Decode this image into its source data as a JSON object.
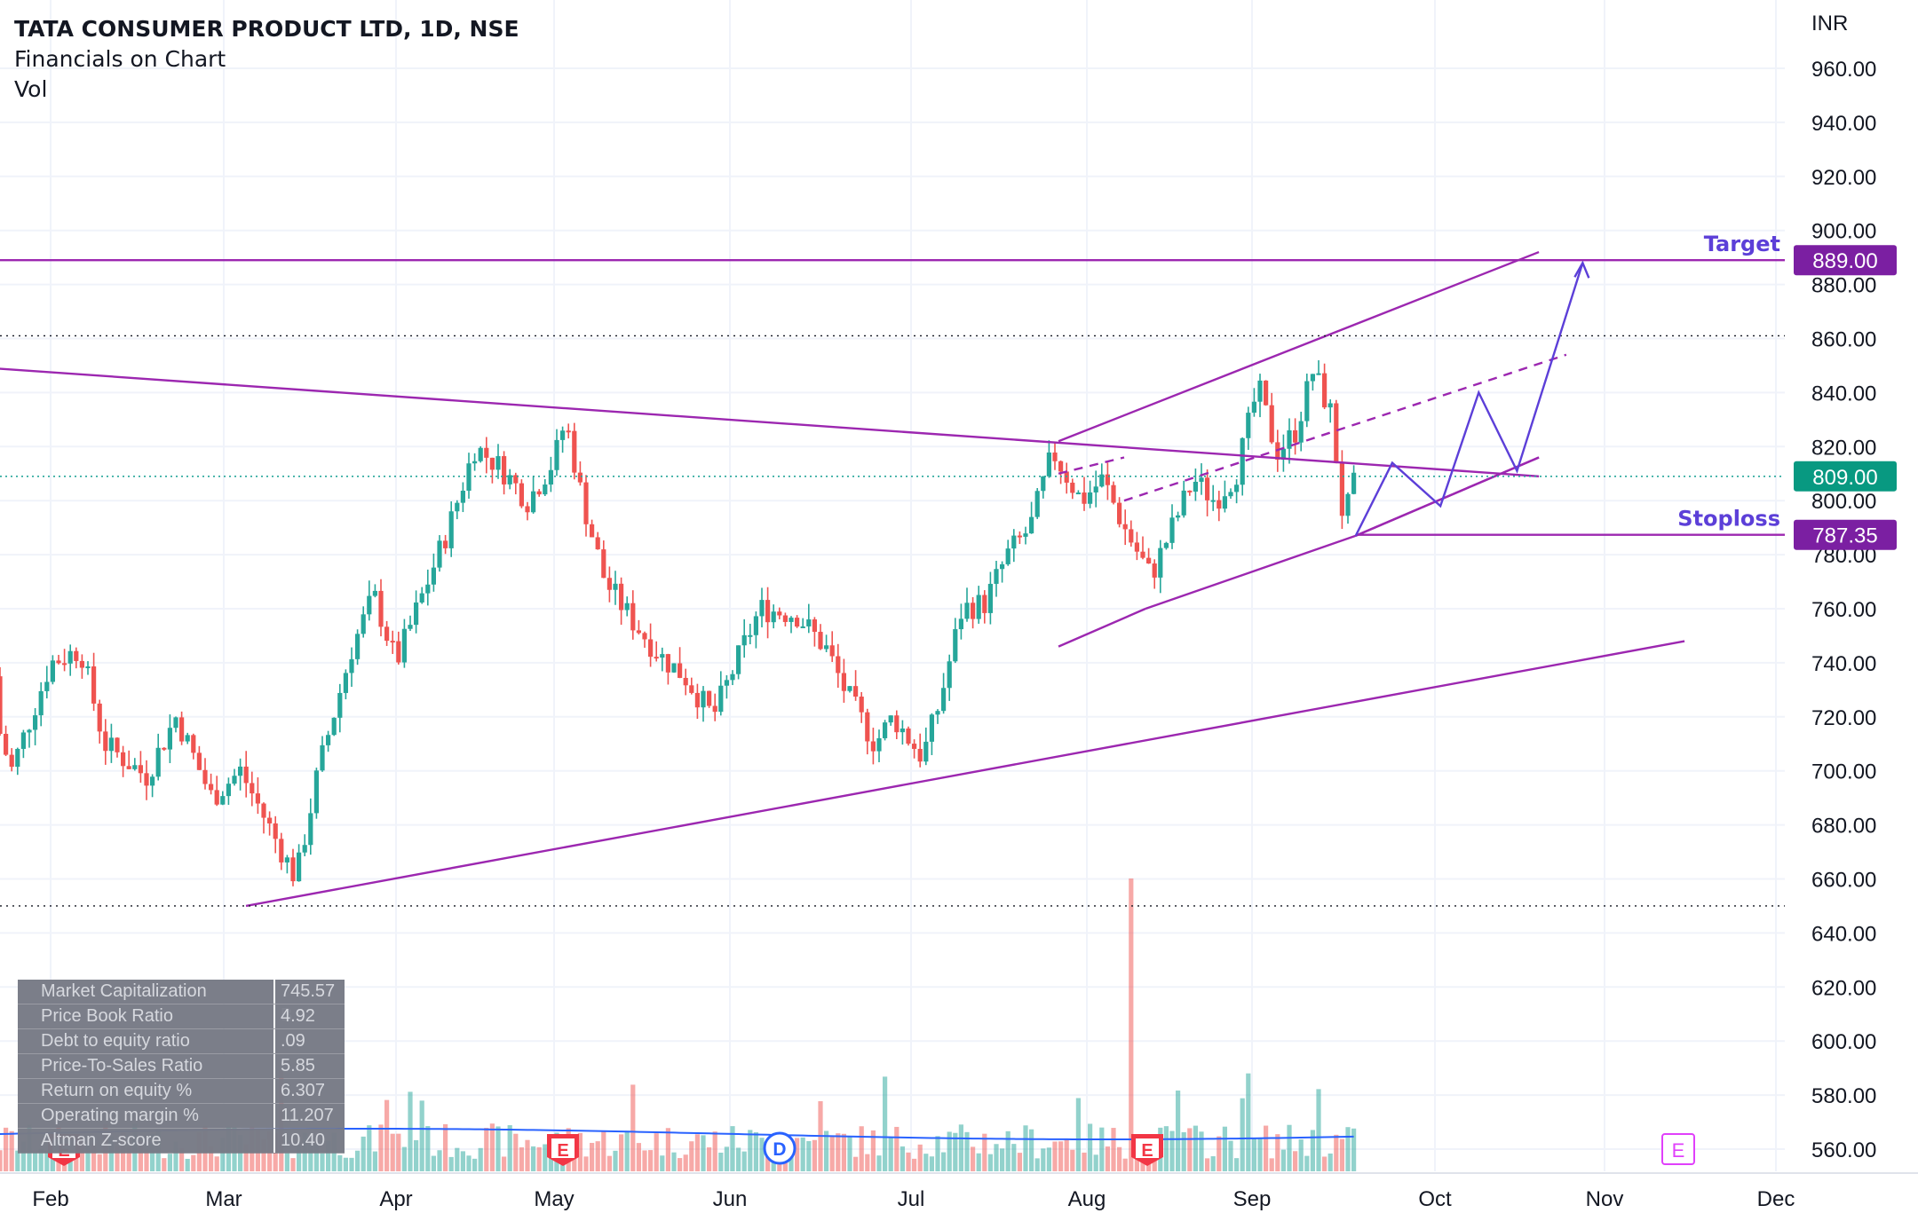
{
  "header": {
    "title": "TATA CONSUMER PRODUCT LTD, 1D, NSE",
    "indicator1": "Financials on Chart",
    "indicator2": "Vol"
  },
  "currency": "INR",
  "colors": {
    "up": "#26a69a",
    "down": "#ef5350",
    "annotation": "#9c27b0",
    "label_bg": "#7b1fa2",
    "current_price_bg": "#089981",
    "volume_ma": "#2962ff"
  },
  "icons": {
    "earnings": "E",
    "dividend": "D"
  },
  "price_labels": {
    "target_text": "Target",
    "target_value": "889.00",
    "current_value": "809.00",
    "stoploss_text": "Stoploss",
    "stoploss_value": "787.35"
  },
  "financials": [
    {
      "label": "Market Capitalization",
      "value": "745.57 B"
    },
    {
      "label": "Price Book Ratio",
      "value": "4.92"
    },
    {
      "label": "Debt to equity ratio",
      "value": ".09"
    },
    {
      "label": "Price-To-Sales Ratio",
      "value": "5.85"
    },
    {
      "label": "Return on equity %",
      "value": "6.307"
    },
    {
      "label": "Operating margin %",
      "value": "11.207"
    },
    {
      "label": "Altman Z-score",
      "value": "10.40"
    }
  ],
  "chart_data": {
    "type": "candlestick",
    "title": "TATA CONSUMER PRODUCT LTD, 1D, NSE",
    "ylabel": "INR",
    "ylim": [
      550,
      972
    ],
    "y_ticks": [
      "560.00",
      "580.00",
      "600.00",
      "620.00",
      "640.00",
      "660.00",
      "680.00",
      "700.00",
      "720.00",
      "740.00",
      "760.00",
      "780.00",
      "800.00",
      "820.00",
      "840.00",
      "860.00",
      "880.00",
      "900.00",
      "920.00",
      "940.00",
      "960.00"
    ],
    "x_ticks": [
      "Feb",
      "Mar",
      "Apr",
      "May",
      "Jun",
      "Jul",
      "Aug",
      "Sep",
      "Oct",
      "Nov",
      "Dec"
    ],
    "grid": true,
    "approx_closes": [
      {
        "date": "Jan-20",
        "close": 735
      },
      {
        "date": "Jan-25",
        "close": 700
      },
      {
        "date": "Feb-01",
        "close": 740
      },
      {
        "date": "Feb-06",
        "close": 745
      },
      {
        "date": "Feb-10",
        "close": 710
      },
      {
        "date": "Feb-17",
        "close": 698
      },
      {
        "date": "Feb-22",
        "close": 720
      },
      {
        "date": "Feb-28",
        "close": 690
      },
      {
        "date": "Mar-04",
        "close": 700
      },
      {
        "date": "Mar-09",
        "close": 680
      },
      {
        "date": "Mar-14",
        "close": 660
      },
      {
        "date": "Mar-18",
        "close": 700
      },
      {
        "date": "Mar-24",
        "close": 745
      },
      {
        "date": "Mar-28",
        "close": 765
      },
      {
        "date": "Apr-01",
        "close": 740
      },
      {
        "date": "Apr-06",
        "close": 765
      },
      {
        "date": "Apr-11",
        "close": 790
      },
      {
        "date": "Apr-16",
        "close": 820
      },
      {
        "date": "Apr-21",
        "close": 812
      },
      {
        "date": "Apr-26",
        "close": 800
      },
      {
        "date": "May-01",
        "close": 815
      },
      {
        "date": "May-03",
        "close": 830
      },
      {
        "date": "May-06",
        "close": 800
      },
      {
        "date": "May-10",
        "close": 770
      },
      {
        "date": "May-15",
        "close": 755
      },
      {
        "date": "May-20",
        "close": 742
      },
      {
        "date": "May-24",
        "close": 735
      },
      {
        "date": "May-29",
        "close": 720
      },
      {
        "date": "Jun-03",
        "close": 745
      },
      {
        "date": "Jun-06",
        "close": 760
      },
      {
        "date": "Jun-12",
        "close": 758
      },
      {
        "date": "Jun-17",
        "close": 745
      },
      {
        "date": "Jun-20",
        "close": 730
      },
      {
        "date": "Jun-25",
        "close": 710
      },
      {
        "date": "Jun-28",
        "close": 720
      },
      {
        "date": "Jul-03",
        "close": 705
      },
      {
        "date": "Jul-06",
        "close": 725
      },
      {
        "date": "Jul-10",
        "close": 760
      },
      {
        "date": "Jul-14",
        "close": 762
      },
      {
        "date": "Jul-18",
        "close": 780
      },
      {
        "date": "Jul-22",
        "close": 790
      },
      {
        "date": "Jul-26",
        "close": 818
      },
      {
        "date": "Jul-31",
        "close": 800
      },
      {
        "date": "Aug-04",
        "close": 808
      },
      {
        "date": "Aug-08",
        "close": 790
      },
      {
        "date": "Aug-13",
        "close": 772
      },
      {
        "date": "Aug-17",
        "close": 790
      },
      {
        "date": "Aug-21",
        "close": 808
      },
      {
        "date": "Aug-25",
        "close": 800
      },
      {
        "date": "Aug-29",
        "close": 810
      },
      {
        "date": "Sep-02",
        "close": 842
      },
      {
        "date": "Sep-05",
        "close": 818
      },
      {
        "date": "Sep-08",
        "close": 825
      },
      {
        "date": "Sep-11",
        "close": 848
      },
      {
        "date": "Sep-14",
        "close": 832
      },
      {
        "date": "Sep-16",
        "close": 792
      },
      {
        "date": "Sep-18",
        "close": 808
      }
    ],
    "levels": {
      "target": 889.0,
      "current": 809.0,
      "stoploss": 787.35
    },
    "trendlines": [
      {
        "name": "descending resistance",
        "from": [
          "Jan-15",
          850
        ],
        "to": [
          "Oct-20",
          809
        ]
      },
      {
        "name": "long-term support",
        "from": [
          "Mar-05",
          650
        ],
        "to": [
          "Nov-15",
          748
        ]
      },
      {
        "name": "channel upper",
        "from": [
          "Jul-27",
          822
        ],
        "to": [
          "Oct-20",
          892
        ]
      },
      {
        "name": "channel lower",
        "from": [
          "Sep-18",
          787
        ],
        "to": [
          "Oct-20",
          816
        ]
      },
      {
        "name": "channel base",
        "from": [
          "Jul-27",
          746
        ],
        "to": [
          "Aug-12",
          760
        ]
      }
    ],
    "volume_spike_date": "Aug-09"
  }
}
